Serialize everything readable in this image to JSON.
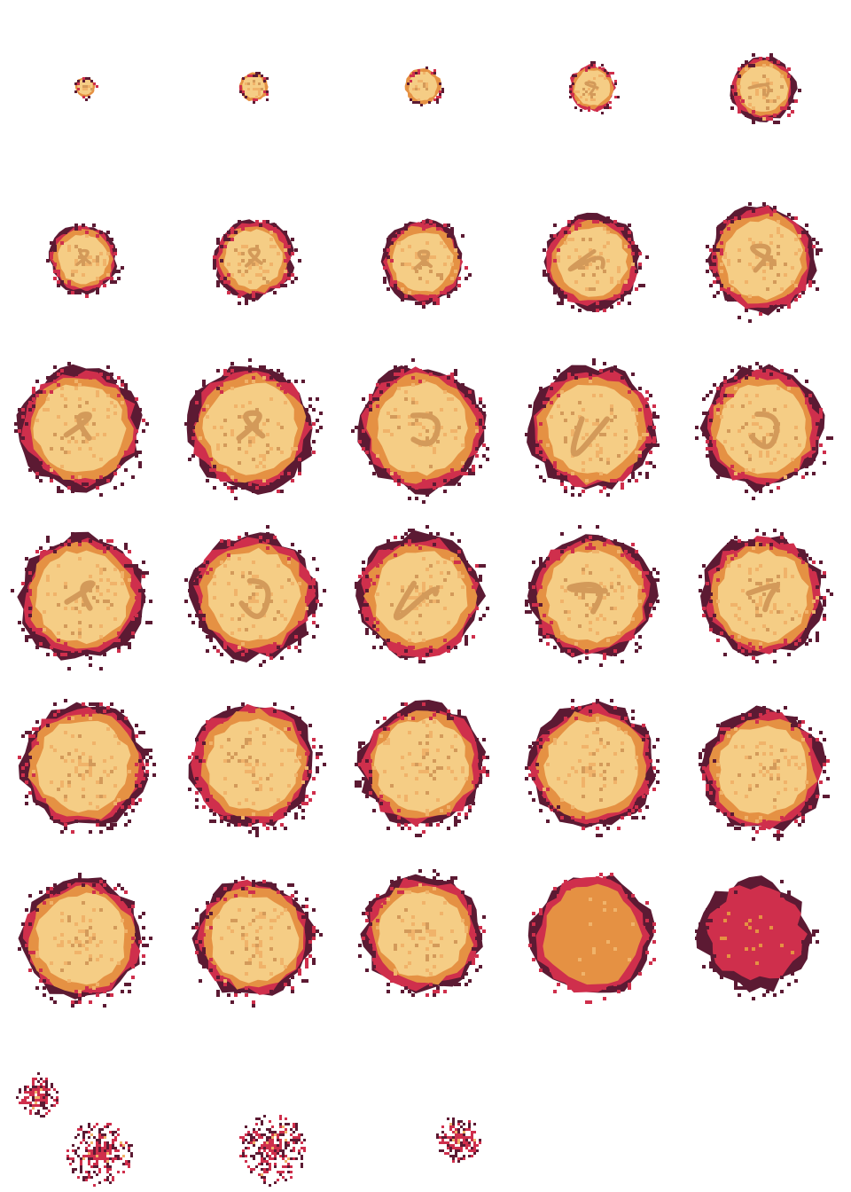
{
  "sprite_sheet": {
    "name": "explosion-animation",
    "frame_count": 33,
    "columns": 5,
    "rows": 7,
    "palette": {
      "dark": "#5c1a33",
      "red": "#cf2f4c",
      "orange": "#e59143",
      "light_orange": "#f0b36a",
      "cream": "#f5cd85",
      "tan": "#d39a5a"
    },
    "frames": [
      {
        "index": 1,
        "type": "burst"
      },
      {
        "index": 2,
        "type": "burst"
      },
      {
        "index": 3,
        "type": "burst"
      },
      {
        "index": 4,
        "type": "burst"
      },
      {
        "index": 5,
        "type": "burst"
      },
      {
        "index": 6,
        "type": "burst"
      },
      {
        "index": 7,
        "type": "burst"
      },
      {
        "index": 8,
        "type": "burst"
      },
      {
        "index": 9,
        "type": "burst"
      },
      {
        "index": 10,
        "type": "burst"
      },
      {
        "index": 11,
        "type": "burst"
      },
      {
        "index": 12,
        "type": "burst"
      },
      {
        "index": 13,
        "type": "burst"
      },
      {
        "index": 14,
        "type": "burst"
      },
      {
        "index": 15,
        "type": "burst"
      },
      {
        "index": 16,
        "type": "burst"
      },
      {
        "index": 17,
        "type": "burst"
      },
      {
        "index": 18,
        "type": "burst"
      },
      {
        "index": 19,
        "type": "burst"
      },
      {
        "index": 20,
        "type": "burst"
      },
      {
        "index": 21,
        "type": "fade"
      },
      {
        "index": 22,
        "type": "fade"
      },
      {
        "index": 23,
        "type": "fade"
      },
      {
        "index": 24,
        "type": "fade"
      },
      {
        "index": 25,
        "type": "fade"
      },
      {
        "index": 26,
        "type": "fade"
      },
      {
        "index": 27,
        "type": "fade"
      },
      {
        "index": 28,
        "type": "fade"
      },
      {
        "index": 29,
        "type": "cooling"
      },
      {
        "index": 30,
        "type": "cooling-red"
      },
      {
        "index": 31,
        "type": "debris"
      },
      {
        "index": 32,
        "type": "debris"
      },
      {
        "index": 33,
        "type": "debris"
      }
    ]
  }
}
